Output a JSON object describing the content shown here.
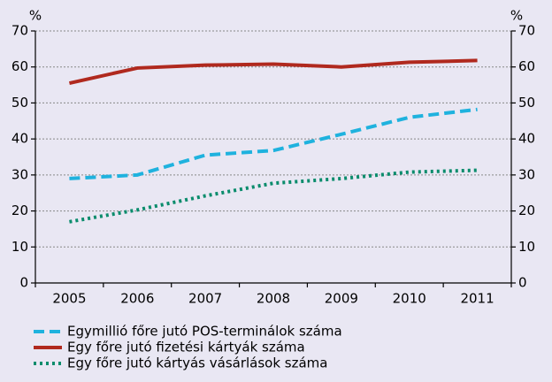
{
  "chart_data": {
    "type": "line",
    "y_label": "%",
    "y2_label": "%",
    "categories": [
      "2005",
      "2006",
      "2007",
      "2008",
      "2009",
      "2010",
      "2011"
    ],
    "series": [
      {
        "name": "Egymillió főre jutó POS-terminálok száma",
        "color": "#1fb2de",
        "dash": "dashed",
        "values": [
          29.0,
          30.0,
          35.5,
          36.8,
          41.3,
          46.0,
          48.2
        ]
      },
      {
        "name": "Egy főre jutó fizetési kártyák száma",
        "color": "#b0291e",
        "dash": "solid",
        "values": [
          55.5,
          59.7,
          60.5,
          60.8,
          60.0,
          61.3,
          61.8
        ]
      },
      {
        "name": "Egy főre jutó kártyás vásárlások száma",
        "color": "#0a8c6c",
        "dash": "dotted",
        "values": [
          17.0,
          20.3,
          24.2,
          27.7,
          29.0,
          30.8,
          31.3
        ]
      }
    ],
    "ylim": [
      0,
      70
    ],
    "yticks": [
      0,
      10,
      20,
      30,
      40,
      50,
      60,
      70
    ],
    "y2lim": [
      0,
      70
    ],
    "y2ticks": [
      0,
      10,
      20,
      30,
      40,
      50,
      60,
      70
    ],
    "grid": true,
    "legend": "bottom"
  }
}
